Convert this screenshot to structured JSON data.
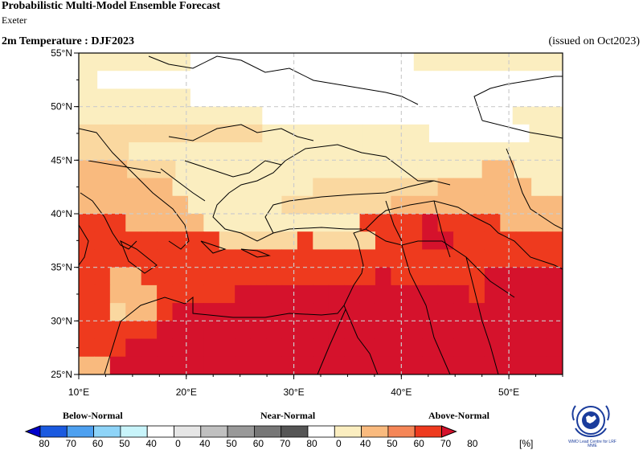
{
  "header": {
    "title": "Probabilistic Multi-Model Ensemble Forecast",
    "center": "Exeter",
    "variable": "2m Temperature : DJF2023",
    "issued": "(issued on Oct2023)"
  },
  "map": {
    "lon_labels": [
      "10°E",
      "20°E",
      "30°E",
      "40°E",
      "50°E"
    ],
    "lat_labels": [
      "55°N",
      "50°N",
      "45°N",
      "40°N",
      "35°N",
      "30°N",
      "25°N"
    ],
    "lon_range": [
      10,
      55
    ],
    "lat_range": [
      25,
      55
    ],
    "grid_step_deg": 2.5,
    "gridlines": "dashed",
    "colors": {
      "white": "#ffffff",
      "n40": "#fbeec0",
      "a40": "#fad8a0",
      "a50": "#f9ba7e",
      "a60": "#f58657",
      "a70": "#ee3a1e",
      "a80": "#d5122c"
    },
    "cells": [
      "yyyyyywwwwwwwwwwwwyyyyyyyy",
      "ywwwwwwwwwwwwwwwwwwwwwwwww",
      "yyyyyywwwwwwwwwwwwwwwwwwww",
      "yyyyyyyyyyywwwwwwwwwwwwwwwyyy",
      "pppppppppppyyyyyyyyyywwwwwwyy",
      "pppyyyyyyyyyyyyyyyyyyyyyyyyyy",
      "ooopppyyyyyyyyyyyyyyyyyyyooyyy",
      "ooooooyyyyyyyyyppppppppooooooyy",
      "oooooooyyyyyypppppppooooooooooo",
      "rrroooooyyyyyyyyyyrrrrRrrrroooo",
      "rrrrrrrrrppppprpppprrrRRrrrrrrr",
      "rrrrrrrrrrrrrrrrrrrrrrrrrrrrrrr",
      "rroorrrrrrrrrrrrrrrRrrrrrrRRRRR",
      "rrooorrrrrRRRRRRRRRRRRRRRrRRRRR",
      "rrpoorRRRRRRRRRRRRRRRRRRRRRRRRR",
      "rrrrrRRRRRRRRRRRRRRRRRRRRRRRRRR",
      "rrrRRRRRRRRRRRRRRRRRRRRRRRRRRRR",
      "ooRRRRRRRRRRRRRRRRRRRRRRRRRRRRR"
    ]
  },
  "colorbar": {
    "category_labels": [
      "Below-Normal",
      "Near-Normal",
      "Above-Normal"
    ],
    "numbers": [
      "80",
      "70",
      "60",
      "50",
      "40",
      "0",
      "40",
      "50",
      "60",
      "70",
      "80",
      "0",
      "40",
      "50",
      "60",
      "70",
      "80"
    ],
    "unit": "[%]",
    "colors": [
      "#0000cc",
      "#1a5ae0",
      "#4da0f0",
      "#8ed4f8",
      "#c8f4fa",
      "#ffffff",
      "#e6e6e6",
      "#c0c0c0",
      "#999999",
      "#777777",
      "#555555",
      "#ffffff",
      "#fbeec0",
      "#f9ba7e",
      "#f58657",
      "#ee3a1e",
      "#d5122c"
    ]
  },
  "logo": {
    "text": "WMO Lead Centre for LRF MME"
  }
}
